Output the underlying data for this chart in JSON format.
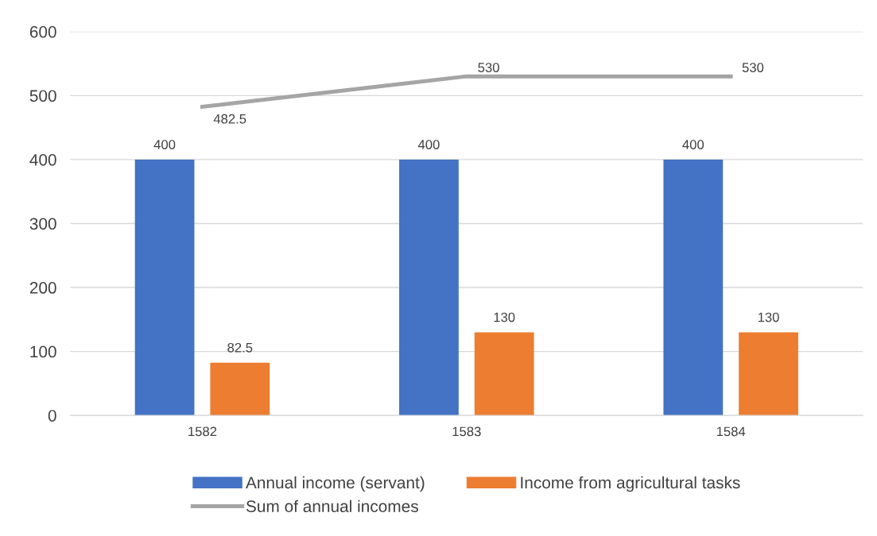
{
  "chart_data": {
    "type": "bar",
    "categories": [
      "1582",
      "1583",
      "1584"
    ],
    "series": [
      {
        "name": "Annual income (servant)",
        "color": "#4472c4",
        "values": [
          400,
          400,
          400
        ]
      },
      {
        "name": "Income from agricultural tasks",
        "color": "#ed7d31",
        "values": [
          82.5,
          130,
          130
        ]
      },
      {
        "name": "Sum of annual incomes",
        "type": "line",
        "color": "#a5a5a5",
        "values": [
          482.5,
          530,
          530
        ]
      }
    ],
    "ylim": [
      0,
      600
    ],
    "yticks": [
      0,
      100,
      200,
      300,
      400,
      500,
      600
    ],
    "grid": "y",
    "legend": "bottom",
    "data_labels": true,
    "marker": "none",
    "line_style": "solid"
  }
}
